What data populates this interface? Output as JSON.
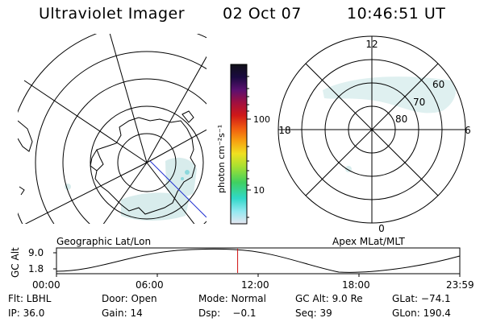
{
  "header": {
    "instrument": "Ultraviolet Imager",
    "date": "02 Oct 07",
    "time": "10:46:51 UT"
  },
  "left_panel": {
    "caption": "Geographic Lat/Lon"
  },
  "right_panel": {
    "caption": "Apex MLat/MLT",
    "mlt_labels": {
      "top": "12",
      "bottom": "0",
      "left": "18",
      "right": "6"
    },
    "mlat_labels": [
      "60",
      "70",
      "80"
    ]
  },
  "colorbar": {
    "unit_label": "photon cm⁻²s⁻¹",
    "ticks": [
      "100",
      "10"
    ],
    "colors": [
      "#101018",
      "#1a0a40",
      "#5a1070",
      "#a01040",
      "#d01818",
      "#f05a10",
      "#f7a010",
      "#f0e020",
      "#a8e030",
      "#40d060",
      "#30d8c8",
      "#90e8f0",
      "#e6e6f0"
    ]
  },
  "altitude_plot": {
    "ylabel": "GC Alt",
    "yticks": [
      "9.0",
      "1.8"
    ],
    "xticks": [
      "00:00",
      "06:00",
      "12:00",
      "18:00",
      "23:59"
    ],
    "current_time_hours": 10.78,
    "marker_color": "#d01010"
  },
  "status": {
    "row1": {
      "filter": "Flt: LBHL",
      "door": "Door: Open",
      "mode": "Mode: Normal",
      "gc_alt": "GC Alt: 9.0 Re",
      "glat": "GLat: −74.1"
    },
    "row2": {
      "ip": "IP: 36.0",
      "gain": "Gain: 14",
      "dsp": "Dsp:    −0.1",
      "seq": "Seq: 39",
      "glon": "GLon: 190.4"
    }
  }
}
